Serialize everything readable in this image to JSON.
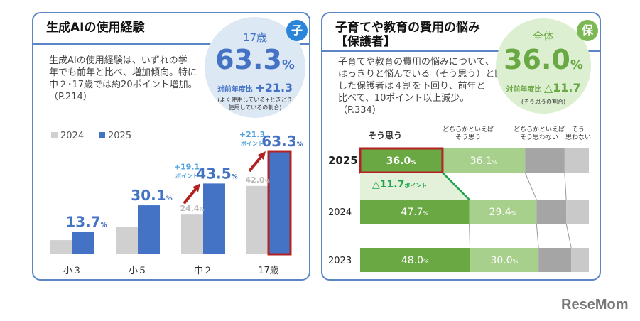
{
  "left": {
    "title": "生成AIの使用経験",
    "badge": "子",
    "desc": [
      "生成AIの使用経験は、いずれの学",
      "年でも前年と比べ、増加傾向。特に",
      "中２･17歳では約20ポイント増加。",
      "（P.214）"
    ],
    "circle": {
      "label": "17歳",
      "value": "63.3",
      "unit": "%",
      "diff_label": "対前年度比",
      "diff": "+21.3",
      "note": [
        "(よく使用している+ときどき",
        "使用しているの割合)"
      ]
    },
    "colors": {
      "accent": "#4472c4",
      "gray": "#d0d0d0",
      "highlight": "#b22222"
    }
  },
  "right": {
    "title": [
      "子育てや教育の費用の悩み",
      "【保護者】"
    ],
    "badge": "保",
    "desc": [
      "子育てや教育の費用の悩みについて、",
      "はっきりと悩んでいる（そう思う）と回答",
      "した保護者は４割を下回り、前年と",
      "比べて、10ポイント以上減少。",
      "（P.334）"
    ],
    "circle": {
      "label": "全体",
      "value": "36.0",
      "unit": "%",
      "diff_label": "対前年度比",
      "diff": "△11.7",
      "note": [
        "(そう思うの割合)"
      ]
    },
    "colors": {
      "dark_green": "#6aa843",
      "light_green": "#a8d08d",
      "dark_gray": "#a5a5a5",
      "light_gray": "#c9c9c9",
      "highlight": "#b22222"
    }
  },
  "chart_data": [
    {
      "type": "bar",
      "categories": [
        "小３",
        "小５",
        "中２",
        "17歳"
      ],
      "series": [
        {
          "name": "2024",
          "values": [
            8.7,
            16.6,
            24.4,
            42.0
          ],
          "labeled": [
            false,
            false,
            true,
            true
          ]
        },
        {
          "name": "2025",
          "values": [
            13.7,
            30.1,
            43.5,
            63.3
          ]
        }
      ],
      "annotations": [
        {
          "category": "中２",
          "text": "+19.1",
          "sub": "ポイント"
        },
        {
          "category": "17歳",
          "text": "+21.3",
          "sub": "ポイント"
        }
      ],
      "legend": "top-left",
      "unit": "%"
    },
    {
      "type": "bar",
      "orientation": "horizontal-stacked",
      "categories": [
        "2025",
        "2024",
        "2023"
      ],
      "series": [
        {
          "name": "そう思う",
          "values": [
            36.0,
            47.7,
            48.0
          ]
        },
        {
          "name": "どちらかといえばそう思う",
          "values": [
            36.1,
            29.4,
            30.0
          ]
        },
        {
          "name": "どちらかといえばそう思わない",
          "values": [
            17.3,
            13.0,
            14.3
          ]
        },
        {
          "name": "そう思わない",
          "values": [
            10.6,
            9.9,
            7.7
          ]
        }
      ],
      "series_labels": [
        [
          "そう思う"
        ],
        [
          "どちらかといえば",
          "そう思う"
        ],
        [
          "どちらかといえば",
          "そう思わない"
        ],
        [
          "そう",
          "思わない"
        ]
      ],
      "annotation": {
        "text": "△11.7",
        "sub": "ポイント"
      },
      "unit": "%"
    }
  ],
  "logo": "ReseMom"
}
